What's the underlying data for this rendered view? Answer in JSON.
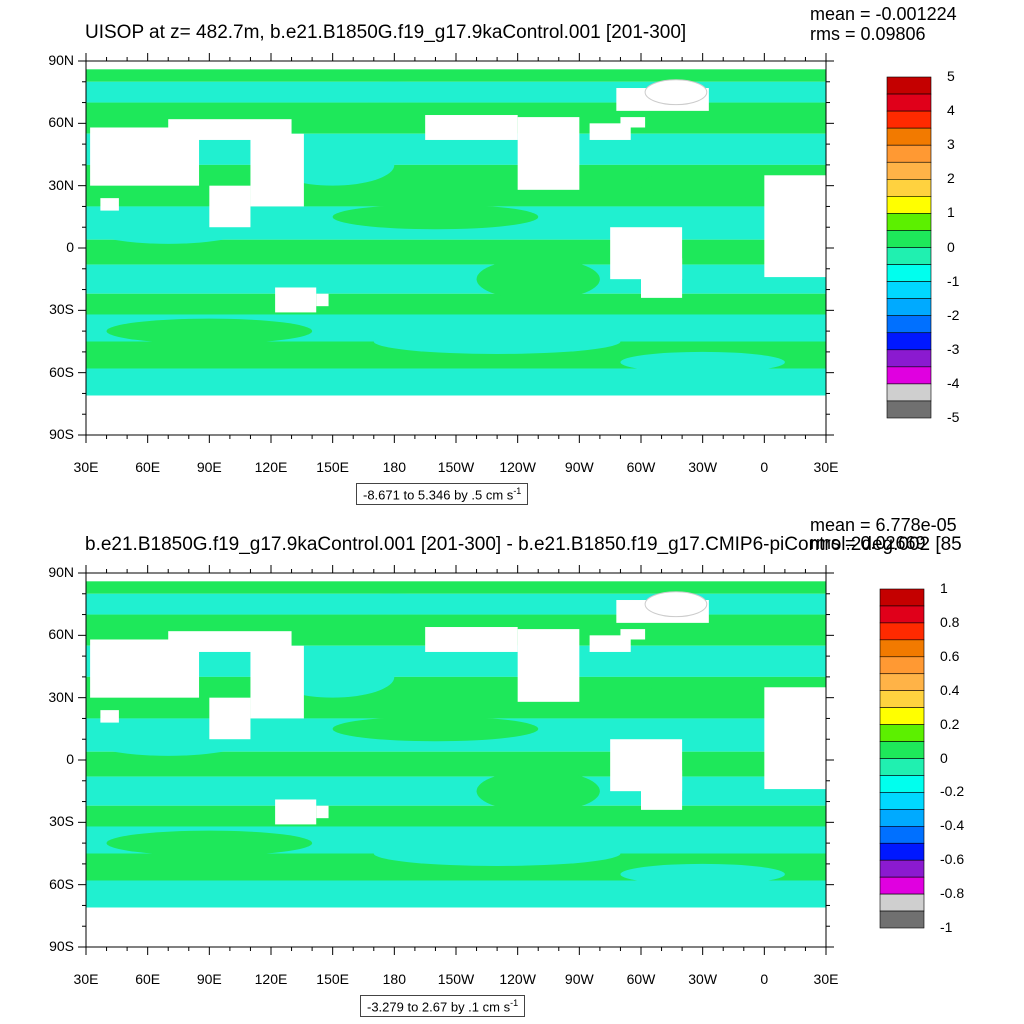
{
  "panels": [
    {
      "title": "UISOP at z= 482.7m, b.e21.B1850G.f19_g17.9kaControl.001 [201-300]",
      "mean": "mean = -0.001224",
      "rms": "rms = 0.09806",
      "range_text": "-8.671 to 5.346 by .5 cm s",
      "range_sup": "-1",
      "colorbar_labels": [
        "5",
        "4",
        "3",
        "2",
        "1",
        "0",
        "-1",
        "-2",
        "-3",
        "-4",
        "-5"
      ]
    },
    {
      "title": "b.e21.B1850G.f19_g17.9kaControl.001 [201-300] - b.e21.B1850.f19_g17.CMIP6-piControl.2deg.002 [85",
      "mean": "mean = 6.778e-05",
      "rms": "rms = 0.02669",
      "range_text": "-3.279 to 2.67 by .1 cm s",
      "range_sup": "-1",
      "colorbar_labels": [
        "1",
        "0.8",
        "0.6",
        "0.4",
        "0.2",
        "0",
        "-0.2",
        "-0.4",
        "-0.6",
        "-0.8",
        "-1"
      ]
    }
  ],
  "axes": {
    "lat_labels": [
      "90N",
      "60N",
      "30N",
      "0",
      "30S",
      "60S",
      "90S"
    ],
    "lon_labels": [
      "30E",
      "60E",
      "90E",
      "120E",
      "150E",
      "180",
      "150W",
      "120W",
      "90W",
      "60W",
      "30W",
      "0",
      "30E"
    ]
  },
  "chart_data": [
    {
      "type": "heatmap",
      "title": "UISOP at z= 482.7m, b.e21.B1850G.f19_g17.9kaControl.001 [201-300]",
      "annotations": [
        "mean = -0.001224",
        "rms = 0.09806",
        "-8.671 to 5.346 by .5 cm s-1"
      ],
      "x_ticks": [
        "30E",
        "60E",
        "90E",
        "120E",
        "150E",
        "180",
        "150W",
        "120W",
        "90W",
        "60W",
        "30W",
        "0",
        "30E"
      ],
      "y_ticks": [
        "90N",
        "60N",
        "30N",
        "0",
        "30S",
        "60S",
        "90S"
      ],
      "colorbar": {
        "min": -5,
        "max": 5,
        "step": 0.5,
        "labels": [
          5,
          4,
          3,
          2,
          1,
          0,
          -1,
          -2,
          -3,
          -4,
          -5
        ],
        "colors": [
          "#c40000",
          "#e0001a",
          "#ff2a00",
          "#f27a00",
          "#ff9933",
          "#ffb347",
          "#ffd23f",
          "#ffff00",
          "#5cf000",
          "#1ee85a",
          "#20f0b0",
          "#00ffee",
          "#00d8ff",
          "#00aaff",
          "#0070ff",
          "#0018ff",
          "#8b1ad0",
          "#e000e0",
          "#cfcfcf",
          "#707070"
        ]
      },
      "dominant_colors": {
        "land": "#ffffff",
        "near_zero_positive": "#1ee85a",
        "near_zero_negative": "#20f0d0"
      }
    },
    {
      "type": "heatmap",
      "title": "b.e21.B1850G.f19_g17.9kaControl.001 [201-300] - b.e21.B1850.f19_g17.CMIP6-piControl.2deg.002 [85",
      "annotations": [
        "mean = 6.778e-05",
        "rms = 0.02669",
        "-3.279 to 2.67 by .1 cm s-1"
      ],
      "x_ticks": [
        "30E",
        "60E",
        "90E",
        "120E",
        "150E",
        "180",
        "150W",
        "120W",
        "90W",
        "60W",
        "30W",
        "0",
        "30E"
      ],
      "y_ticks": [
        "90N",
        "60N",
        "30N",
        "0",
        "30S",
        "60S",
        "90S"
      ],
      "colorbar": {
        "min": -1,
        "max": 1,
        "step": 0.1,
        "labels": [
          1,
          0.8,
          0.6,
          0.4,
          0.2,
          0,
          -0.2,
          -0.4,
          -0.6,
          -0.8,
          -1
        ],
        "colors": [
          "#c40000",
          "#e0001a",
          "#ff2a00",
          "#f27a00",
          "#ff9933",
          "#ffb347",
          "#ffd23f",
          "#ffff00",
          "#5cf000",
          "#1ee85a",
          "#20f0b0",
          "#00ffee",
          "#00d8ff",
          "#00aaff",
          "#0070ff",
          "#0018ff",
          "#8b1ad0",
          "#e000e0",
          "#cfcfcf",
          "#707070"
        ]
      },
      "dominant_colors": {
        "land": "#ffffff",
        "near_zero_positive": "#1ee85a",
        "near_zero_negative": "#20f0d0"
      }
    }
  ]
}
